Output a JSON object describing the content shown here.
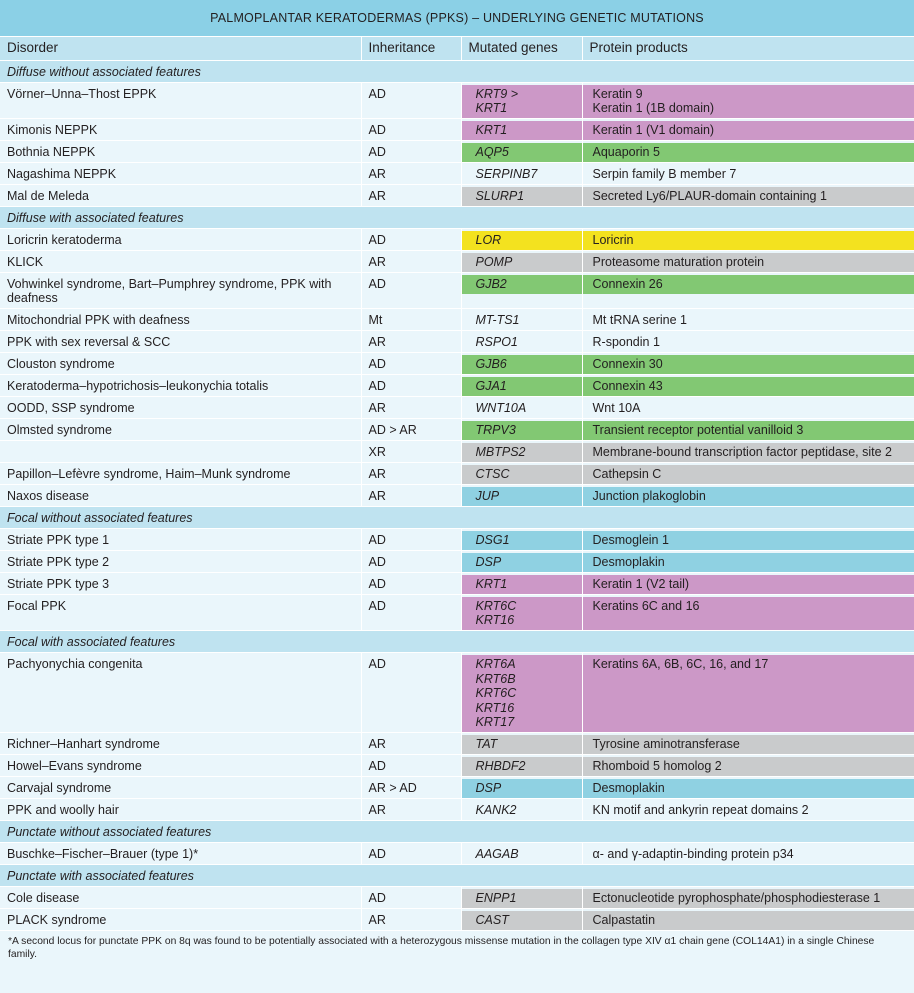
{
  "title": "PALMOPLANTAR KERATODERMAS (PPKS) – UNDERLYING GENETIC MUTATIONS",
  "columns": [
    "Disorder",
    "Inheritance",
    "Mutated genes",
    "Protein products"
  ],
  "colors": {
    "pink": "#cc98c7",
    "green": "#82c873",
    "yellow": "#f3e21f",
    "gray": "#c9cbcc",
    "blue": "#8fd1e2",
    "header": "#bfe3f0",
    "row": "#eaf6fb"
  },
  "rows": [
    {
      "section": "Diffuse without associated features"
    },
    {
      "disorder": "Vörner–Unna–Thost EPPK",
      "inheritance": "AD",
      "genes": [
        "KRT9 >",
        "KRT1"
      ],
      "proteins": [
        "Keratin 9",
        "Keratin 1 (1B domain)"
      ],
      "color": "pink"
    },
    {
      "disorder": "Kimonis NEPPK",
      "inheritance": "AD",
      "genes": [
        "KRT1"
      ],
      "proteins": [
        "Keratin 1 (V1 domain)"
      ],
      "color": "pink"
    },
    {
      "disorder": "Bothnia NEPPK",
      "inheritance": "AD",
      "genes": [
        "AQP5"
      ],
      "proteins": [
        "Aquaporin 5"
      ],
      "color": "green"
    },
    {
      "disorder": "Nagashima NEPPK",
      "inheritance": "AR",
      "genes": [
        "SERPINB7"
      ],
      "proteins": [
        "Serpin family B member 7"
      ],
      "color": "none"
    },
    {
      "disorder": "Mal de Meleda",
      "inheritance": "AR",
      "genes": [
        "SLURP1"
      ],
      "proteins": [
        "Secreted Ly6/PLAUR-domain containing 1"
      ],
      "color": "gray"
    },
    {
      "section": "Diffuse with associated features"
    },
    {
      "disorder": "Loricrin keratoderma",
      "inheritance": "AD",
      "genes": [
        "LOR"
      ],
      "proteins": [
        "Loricrin"
      ],
      "color": "yellow"
    },
    {
      "disorder": "KLICK",
      "inheritance": "AR",
      "genes": [
        "POMP"
      ],
      "proteins": [
        "Proteasome maturation protein"
      ],
      "color": "gray"
    },
    {
      "disorder": "Vohwinkel syndrome, Bart–Pumphrey syndrome, PPK with deafness",
      "inheritance": "AD",
      "genes": [
        "GJB2"
      ],
      "proteins": [
        "Connexin 26"
      ],
      "color": "green"
    },
    {
      "disorder": "Mitochondrial PPK with deafness",
      "inheritance": "Mt",
      "genes": [
        "MT-TS1"
      ],
      "proteins": [
        "Mt tRNA serine 1"
      ],
      "color": "none"
    },
    {
      "disorder": "PPK with sex reversal & SCC",
      "inheritance": "AR",
      "genes": [
        "RSPO1"
      ],
      "proteins": [
        "R-spondin 1"
      ],
      "color": "none"
    },
    {
      "disorder": "Clouston syndrome",
      "inheritance": "AD",
      "genes": [
        "GJB6"
      ],
      "proteins": [
        "Connexin 30"
      ],
      "color": "green"
    },
    {
      "disorder": "Keratoderma–hypotrichosis–leukonychia totalis",
      "inheritance": "AD",
      "genes": [
        "GJA1"
      ],
      "proteins": [
        "Connexin 43"
      ],
      "color": "green"
    },
    {
      "disorder": "OODD, SSP syndrome",
      "inheritance": "AR",
      "genes": [
        "WNT10A"
      ],
      "proteins": [
        "Wnt 10A"
      ],
      "color": "none"
    },
    {
      "disorder": "Olmsted syndrome",
      "inheritance": "AD > AR",
      "genes": [
        "TRPV3"
      ],
      "proteins": [
        "Transient receptor potential vanilloid 3"
      ],
      "color": "green"
    },
    {
      "disorder": "",
      "inheritance": "XR",
      "genes": [
        "MBTPS2"
      ],
      "proteins": [
        "Membrane-bound transcription factor peptidase, site 2"
      ],
      "color": "gray"
    },
    {
      "disorder": "Papillon–Lefèvre syndrome, Haim–Munk syndrome",
      "inheritance": "AR",
      "genes": [
        "CTSC"
      ],
      "proteins": [
        "Cathepsin C"
      ],
      "color": "gray"
    },
    {
      "disorder": "Naxos disease",
      "inheritance": "AR",
      "genes": [
        "JUP"
      ],
      "proteins": [
        "Junction plakoglobin"
      ],
      "color": "blue"
    },
    {
      "section": "Focal without associated features"
    },
    {
      "disorder": "Striate PPK type 1",
      "inheritance": "AD",
      "genes": [
        "DSG1"
      ],
      "proteins": [
        "Desmoglein 1"
      ],
      "color": "blue"
    },
    {
      "disorder": "Striate PPK type 2",
      "inheritance": "AD",
      "genes": [
        "DSP"
      ],
      "proteins": [
        "Desmoplakin"
      ],
      "color": "blue"
    },
    {
      "disorder": "Striate PPK type 3",
      "inheritance": "AD",
      "genes": [
        "KRT1"
      ],
      "proteins": [
        "Keratin 1 (V2 tail)"
      ],
      "color": "pink"
    },
    {
      "disorder": "Focal PPK",
      "inheritance": "AD",
      "genes": [
        "KRT6C",
        "KRT16"
      ],
      "proteins": [
        "Keratins 6C and 16"
      ],
      "color": "pink"
    },
    {
      "section": "Focal with associated features"
    },
    {
      "disorder": "Pachyonychia congenita",
      "inheritance": "AD",
      "genes": [
        "KRT6A",
        "KRT6B",
        "KRT6C",
        "KRT16",
        "KRT17"
      ],
      "proteins": [
        "Keratins 6A, 6B, 6C, 16, and 17"
      ],
      "color": "pink"
    },
    {
      "disorder": "Richner–Hanhart syndrome",
      "inheritance": "AR",
      "genes": [
        "TAT"
      ],
      "proteins": [
        "Tyrosine aminotransferase"
      ],
      "color": "gray"
    },
    {
      "disorder": "Howel–Evans syndrome",
      "inheritance": "AD",
      "genes": [
        "RHBDF2"
      ],
      "proteins": [
        "Rhomboid 5 homolog 2"
      ],
      "color": "gray"
    },
    {
      "disorder": "Carvajal syndrome",
      "inheritance": "AR > AD",
      "genes": [
        "DSP"
      ],
      "proteins": [
        "Desmoplakin"
      ],
      "color": "blue"
    },
    {
      "disorder": "PPK and woolly hair",
      "inheritance": "AR",
      "genes": [
        "KANK2"
      ],
      "proteins": [
        "KN motif and ankyrin repeat domains 2"
      ],
      "color": "none"
    },
    {
      "section": "Punctate without associated features"
    },
    {
      "disorder": "Buschke–Fischer–Brauer (type 1)*",
      "inheritance": "AD",
      "genes": [
        "AAGAB"
      ],
      "proteins": [
        "α- and γ-adaptin-binding protein p34"
      ],
      "color": "none"
    },
    {
      "section": "Punctate with associated features"
    },
    {
      "disorder": "Cole disease",
      "inheritance": "AD",
      "genes": [
        "ENPP1"
      ],
      "proteins": [
        "Ectonucleotide pyrophosphate/phosphodiesterase 1"
      ],
      "color": "gray"
    },
    {
      "disorder": "PLACK syndrome",
      "inheritance": "AR",
      "genes": [
        "CAST"
      ],
      "proteins": [
        "Calpastatin"
      ],
      "color": "gray"
    }
  ],
  "footnote": "*A second locus for punctate PPK on 8q was found to be potentially associated with a heterozygous missense mutation in the collagen type XIV α1 chain gene (COL14A1) in a single Chinese family."
}
